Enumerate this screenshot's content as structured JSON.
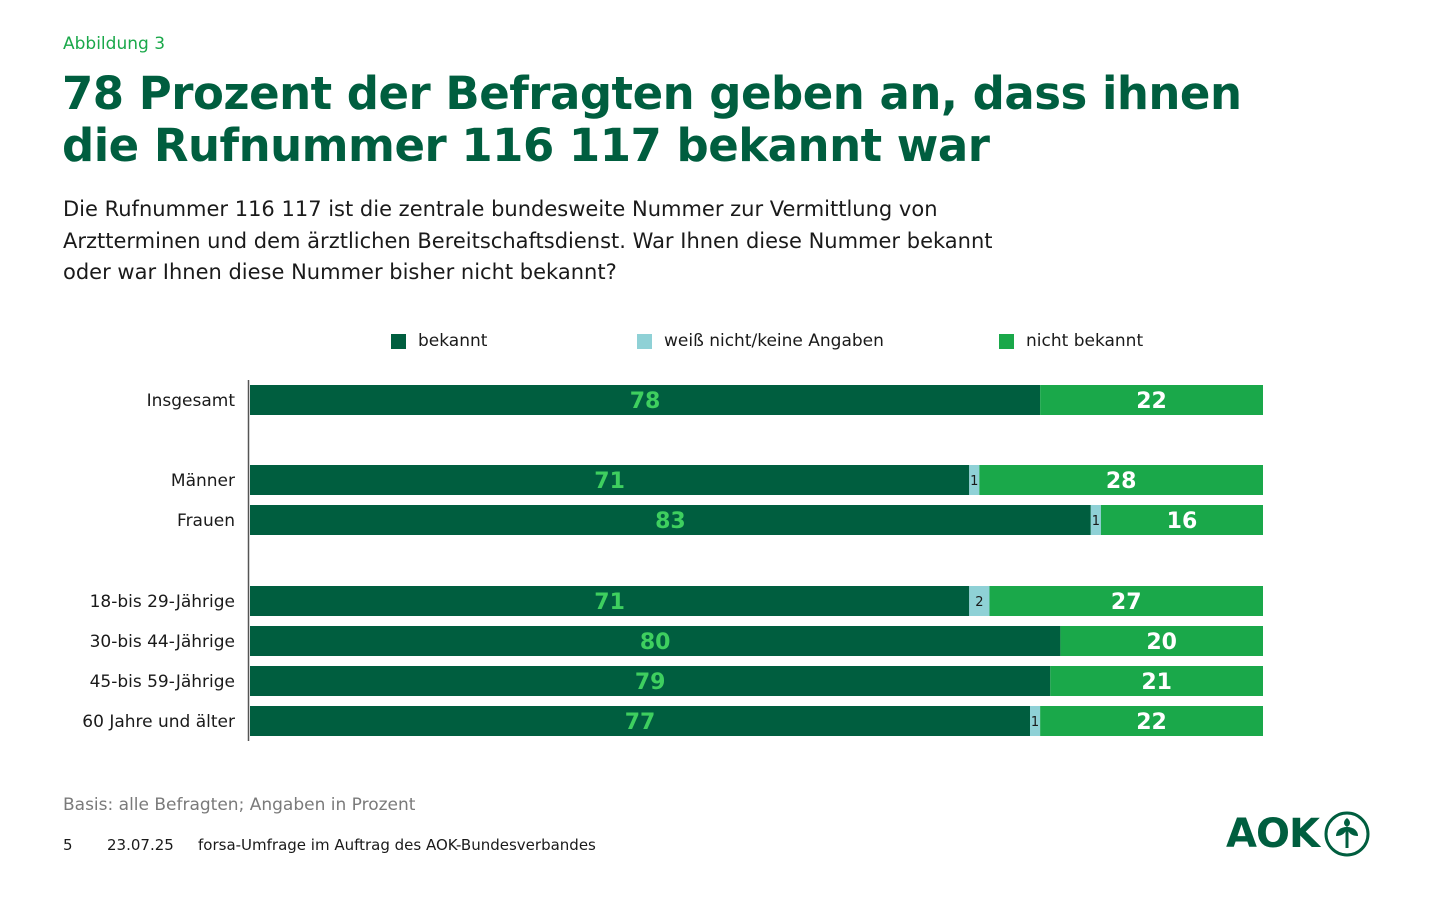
{
  "header": {
    "kicker": "Abbildung 3",
    "title_line1": "78 Prozent der Befragten geben an, dass ihnen",
    "title_line2": "die Rufnummer 116 117 bekannt war",
    "question_line1": "Die Rufnummer 116 117 ist die zentrale bundesweite Nummer zur Vermittlung von",
    "question_line2": "Arztterminen und dem ärztlichen Bereitschaftsdienst. War Ihnen diese Nummer bekannt",
    "question_line3": "oder war Ihnen diese Nummer bisher nicht bekannt?"
  },
  "colors": {
    "bekannt": "#005e3f",
    "weiss_nicht": "#8fd1d6",
    "nicht_bekannt": "#1aa84a",
    "label_on_dark": "#3ecf5f",
    "label_on_green": "#ffffff",
    "axis": "#555555"
  },
  "chart_data": {
    "type": "bar",
    "orientation": "horizontal-stacked",
    "legend_position": "top",
    "xlim": [
      0,
      100
    ],
    "categories": [
      "Insgesamt",
      "Männer",
      "Frauen",
      "18-bis 29-Jährige",
      "30-bis 44-Jährige",
      "45-bis 59-Jährige",
      "60 Jahre und älter"
    ],
    "series": [
      {
        "name": "bekannt",
        "values": [
          78,
          71,
          83,
          71,
          80,
          79,
          77
        ]
      },
      {
        "name": "weiß nicht/keine Angaben",
        "values": [
          0,
          1,
          1,
          2,
          0,
          0,
          1
        ]
      },
      {
        "name": "nicht bekannt",
        "values": [
          22,
          28,
          16,
          27,
          20,
          21,
          22
        ]
      }
    ]
  },
  "footer": {
    "basis": "Basis: alle Befragten; Angaben in Prozent",
    "page_number": "5",
    "date": "23.07.25",
    "source": "forsa-Umfrage im Auftrag des AOK-Bundesverbandes",
    "logo_text": "AOK"
  }
}
